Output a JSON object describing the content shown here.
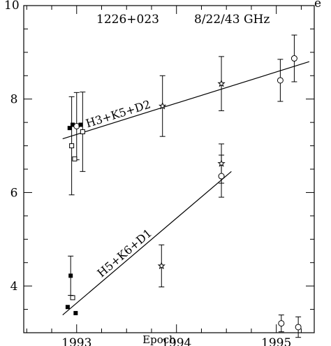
{
  "chart_data": {
    "type": "scatter",
    "title": "",
    "xlabel": "Epoch",
    "ylabel": "",
    "xlim": [
      1992.47,
      1995.38
    ],
    "ylim": [
      3.0,
      10.0
    ],
    "xticks": [
      1993,
      1994,
      1995
    ],
    "xtick_labels": [
      "1993",
      "1994",
      "1995"
    ],
    "yticks": [
      4,
      6,
      8
    ],
    "ytick_labels": [
      "4",
      "6",
      "8"
    ],
    "ytop_label": "10",
    "grid": false,
    "annotations": {
      "source": "1226+023",
      "frequencies": "8/22/43 GHz",
      "corner": "e"
    },
    "series": [
      {
        "name": "H3+K5+D2",
        "points": [
          {
            "x": 1992.93,
            "y": 7.38,
            "marker": "filled-square",
            "err": 0.0
          },
          {
            "x": 1992.95,
            "y": 7.0,
            "marker": "open-square",
            "err": 1.05
          },
          {
            "x": 1992.96,
            "y": 7.45,
            "marker": "filled-square",
            "err": 0.0
          },
          {
            "x": 1992.98,
            "y": 6.72,
            "marker": "open-square",
            "err": 0.0
          },
          {
            "x": 1993.0,
            "y": 7.42,
            "marker": "open-circle",
            "err": 0.72
          },
          {
            "x": 1993.04,
            "y": 7.45,
            "marker": "filled-square",
            "err": 0.0
          },
          {
            "x": 1993.06,
            "y": 7.3,
            "marker": "open-square",
            "err": 0.85
          },
          {
            "x": 1993.86,
            "y": 7.85,
            "marker": "star",
            "err": 0.65
          },
          {
            "x": 1994.45,
            "y": 8.33,
            "marker": "star",
            "err": 0.58
          },
          {
            "x": 1995.04,
            "y": 8.4,
            "marker": "open-circle",
            "err": 0.45
          },
          {
            "x": 1995.18,
            "y": 8.87,
            "marker": "open-circle",
            "err": 0.5
          }
        ],
        "fit_line": [
          [
            1992.86,
            7.15
          ],
          [
            1995.33,
            8.8
          ]
        ]
      },
      {
        "name": "H5+K6+D1",
        "points": [
          {
            "x": 1992.91,
            "y": 3.55,
            "marker": "filled-square",
            "err": 0.0
          },
          {
            "x": 1992.94,
            "y": 4.22,
            "marker": "filled-square",
            "err": 0.42
          },
          {
            "x": 1992.96,
            "y": 3.75,
            "marker": "open-square",
            "err": 0.0
          },
          {
            "x": 1992.99,
            "y": 3.42,
            "marker": "filled-square",
            "err": 0.0
          },
          {
            "x": 1993.85,
            "y": 4.43,
            "marker": "star",
            "err": 0.45
          },
          {
            "x": 1994.45,
            "y": 6.62,
            "marker": "star",
            "err": 0.42
          },
          {
            "x": 1994.45,
            "y": 6.35,
            "marker": "open-circle",
            "err": 0.45
          },
          {
            "x": 1995.05,
            "y": 3.2,
            "marker": "open-circle",
            "err": 0.18
          },
          {
            "x": 1995.22,
            "y": 3.12,
            "marker": "open-circle",
            "err": 0.22
          }
        ],
        "fit_line": [
          [
            1992.86,
            3.38
          ],
          [
            1994.55,
            6.45
          ]
        ]
      }
    ]
  }
}
